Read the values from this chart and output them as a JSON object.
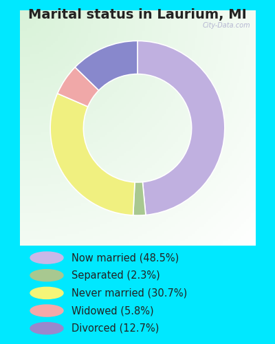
{
  "title": "Marital status in Laurium, MI",
  "slices": [
    48.5,
    2.3,
    30.7,
    5.8,
    12.7
  ],
  "labels": [
    "Now married (48.5%)",
    "Separated (2.3%)",
    "Never married (30.7%)",
    "Widowed (5.8%)",
    "Divorced (12.7%)"
  ],
  "colors": [
    "#c0b0e0",
    "#a8c890",
    "#f0f080",
    "#f0a8a8",
    "#8888cc"
  ],
  "legend_colors": [
    "#c8b8e8",
    "#a8c890",
    "#f5f577",
    "#f5a8a8",
    "#9988cc"
  ],
  "bg_color_outer": "#00e8ff",
  "title_fontsize": 14,
  "start_angle": 90,
  "donut_width": 0.38,
  "title_color": "#222222",
  "legend_fontsize": 10.5,
  "watermark": "City-Data.com"
}
